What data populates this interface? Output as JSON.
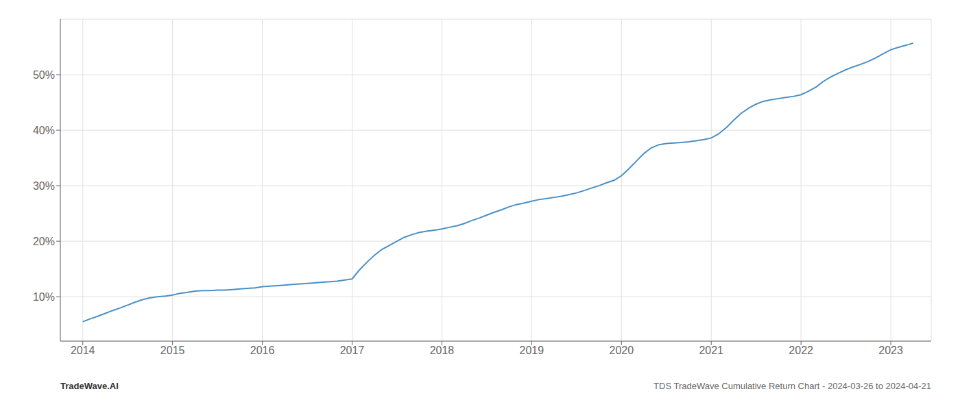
{
  "chart_data": {
    "type": "line",
    "annotations": [
      "TradeWave.AI",
      "TDS TradeWave Cumulative Return Chart - 2024-03-26 to 2024-04-21"
    ],
    "color": "#4a90c4",
    "grid": true,
    "xlim": [
      2013.75,
      2023.45
    ],
    "xticks": [
      2014,
      2015,
      2016,
      2017,
      2018,
      2019,
      2020,
      2021,
      2022,
      2023
    ],
    "ylim": [
      0.02,
      0.6
    ],
    "yticks": [
      {
        "value": 0.1,
        "label": "10%"
      },
      {
        "value": 0.2,
        "label": "20%"
      },
      {
        "value": 0.3,
        "label": "30%"
      },
      {
        "value": 0.4,
        "label": "40%"
      },
      {
        "value": 0.5,
        "label": "50%"
      }
    ],
    "x": [
      2014.0,
      2014.08,
      2014.17,
      2014.25,
      2014.33,
      2014.42,
      2014.5,
      2014.58,
      2014.67,
      2014.75,
      2014.83,
      2014.92,
      2015.0,
      2015.08,
      2015.17,
      2015.25,
      2015.33,
      2015.42,
      2015.5,
      2015.58,
      2015.67,
      2015.75,
      2015.83,
      2015.92,
      2016.0,
      2016.08,
      2016.17,
      2016.25,
      2016.33,
      2016.42,
      2016.5,
      2016.58,
      2016.67,
      2016.75,
      2016.83,
      2016.92,
      2017.0,
      2017.08,
      2017.17,
      2017.25,
      2017.33,
      2017.42,
      2017.5,
      2017.58,
      2017.67,
      2017.75,
      2017.83,
      2017.92,
      2018.0,
      2018.08,
      2018.17,
      2018.25,
      2018.33,
      2018.42,
      2018.5,
      2018.58,
      2018.67,
      2018.75,
      2018.83,
      2018.92,
      2019.0,
      2019.08,
      2019.17,
      2019.25,
      2019.33,
      2019.42,
      2019.5,
      2019.58,
      2019.67,
      2019.75,
      2019.83,
      2019.92,
      2020.0,
      2020.08,
      2020.17,
      2020.25,
      2020.33,
      2020.42,
      2020.5,
      2020.58,
      2020.67,
      2020.75,
      2020.83,
      2020.92,
      2021.0,
      2021.08,
      2021.17,
      2021.25,
      2021.33,
      2021.42,
      2021.5,
      2021.58,
      2021.67,
      2021.75,
      2021.83,
      2021.92,
      2022.0,
      2022.08,
      2022.17,
      2022.25,
      2022.33,
      2022.42,
      2022.5,
      2022.58,
      2022.67,
      2022.75,
      2022.83,
      2022.92,
      2023.0,
      2023.08,
      2023.17,
      2023.25
    ],
    "values": [
      0.055,
      0.06,
      0.065,
      0.07,
      0.075,
      0.08,
      0.085,
      0.09,
      0.095,
      0.098,
      0.1,
      0.101,
      0.103,
      0.106,
      0.108,
      0.11,
      0.111,
      0.111,
      0.112,
      0.112,
      0.113,
      0.114,
      0.115,
      0.116,
      0.118,
      0.119,
      0.12,
      0.121,
      0.122,
      0.123,
      0.124,
      0.125,
      0.126,
      0.127,
      0.128,
      0.13,
      0.132,
      0.148,
      0.163,
      0.175,
      0.185,
      0.193,
      0.2,
      0.207,
      0.212,
      0.216,
      0.218,
      0.22,
      0.222,
      0.225,
      0.228,
      0.232,
      0.237,
      0.242,
      0.247,
      0.252,
      0.257,
      0.262,
      0.266,
      0.269,
      0.272,
      0.275,
      0.277,
      0.279,
      0.281,
      0.284,
      0.287,
      0.291,
      0.296,
      0.3,
      0.305,
      0.31,
      0.318,
      0.33,
      0.345,
      0.358,
      0.368,
      0.374,
      0.376,
      0.377,
      0.378,
      0.379,
      0.381,
      0.383,
      0.386,
      0.393,
      0.405,
      0.418,
      0.43,
      0.44,
      0.447,
      0.452,
      0.455,
      0.457,
      0.459,
      0.461,
      0.464,
      0.47,
      0.478,
      0.488,
      0.496,
      0.503,
      0.509,
      0.514,
      0.519,
      0.524,
      0.53,
      0.538,
      0.545,
      0.549,
      0.553,
      0.557
    ]
  }
}
